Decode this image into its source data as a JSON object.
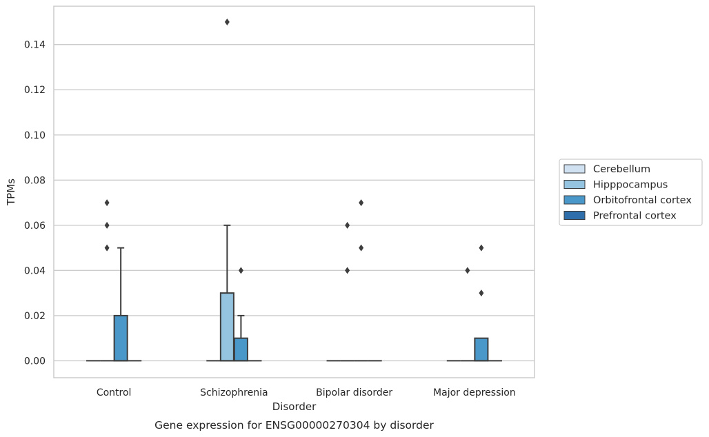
{
  "chart_data": {
    "type": "box",
    "caption": "Gene expression for ENSG00000270304 by disorder",
    "xlabel": "Disorder",
    "ylabel": "TPMs",
    "ylim": [
      -0.0075,
      0.157
    ],
    "y_ticks": [
      0.0,
      0.02,
      0.04,
      0.06,
      0.08,
      0.1,
      0.12,
      0.14
    ],
    "y_tick_labels": [
      "0.00",
      "0.02",
      "0.04",
      "0.06",
      "0.08",
      "0.10",
      "0.12",
      "0.14"
    ],
    "grid": "horizontal",
    "legend_position": "right",
    "categories": [
      "Control",
      "Schizophrenia",
      "Bipolar disorder",
      "Major depression"
    ],
    "series": [
      {
        "name": "Cerebellum",
        "color": "#d0e1f2",
        "boxes": [
          {
            "q1": 0,
            "median": 0,
            "q3": 0,
            "whisker_low": 0,
            "whisker_high": 0,
            "outliers": []
          },
          {
            "q1": 0,
            "median": 0,
            "q3": 0,
            "whisker_low": 0,
            "whisker_high": 0,
            "outliers": []
          },
          {
            "q1": 0,
            "median": 0,
            "q3": 0,
            "whisker_low": 0,
            "whisker_high": 0,
            "outliers": []
          },
          {
            "q1": 0,
            "median": 0,
            "q3": 0,
            "whisker_low": 0,
            "whisker_high": 0,
            "outliers": []
          }
        ]
      },
      {
        "name": "Hipppocampus",
        "color": "#94c4df",
        "boxes": [
          {
            "q1": 0,
            "median": 0,
            "q3": 0,
            "whisker_low": 0,
            "whisker_high": 0,
            "outliers": [
              0.05,
              0.06,
              0.07
            ]
          },
          {
            "q1": 0,
            "median": 0,
            "q3": 0.03,
            "whisker_low": 0,
            "whisker_high": 0.06,
            "outliers": [
              0.15
            ]
          },
          {
            "q1": 0,
            "median": 0,
            "q3": 0,
            "whisker_low": 0,
            "whisker_high": 0,
            "outliers": [
              0.04,
              0.06
            ]
          },
          {
            "q1": 0,
            "median": 0,
            "q3": 0,
            "whisker_low": 0,
            "whisker_high": 0,
            "outliers": [
              0.04
            ]
          }
        ]
      },
      {
        "name": "Orbitofrontal cortex",
        "color": "#4a98c9",
        "boxes": [
          {
            "q1": 0,
            "median": 0,
            "q3": 0.02,
            "whisker_low": 0,
            "whisker_high": 0.05,
            "outliers": []
          },
          {
            "q1": 0,
            "median": 0,
            "q3": 0.01,
            "whisker_low": 0,
            "whisker_high": 0.02,
            "outliers": [
              0.04
            ]
          },
          {
            "q1": 0,
            "median": 0,
            "q3": 0,
            "whisker_low": 0,
            "whisker_high": 0,
            "outliers": [
              0.05,
              0.07
            ]
          },
          {
            "q1": 0,
            "median": 0,
            "q3": 0.01,
            "whisker_low": 0,
            "whisker_high": 0.01,
            "outliers": [
              0.03,
              0.05
            ]
          }
        ]
      },
      {
        "name": "Prefrontal cortex",
        "color": "#2e6fab",
        "boxes": [
          {
            "q1": 0,
            "median": 0,
            "q3": 0,
            "whisker_low": 0,
            "whisker_high": 0,
            "outliers": []
          },
          {
            "q1": 0,
            "median": 0,
            "q3": 0,
            "whisker_low": 0,
            "whisker_high": 0,
            "outliers": []
          },
          {
            "q1": 0,
            "median": 0,
            "q3": 0,
            "whisker_low": 0,
            "whisker_high": 0,
            "outliers": []
          },
          {
            "q1": 0,
            "median": 0,
            "q3": 0,
            "whisker_low": 0,
            "whisker_high": 0,
            "outliers": []
          }
        ]
      }
    ],
    "line_color": "#3d3d3d",
    "grid_color": "#cccccc"
  }
}
